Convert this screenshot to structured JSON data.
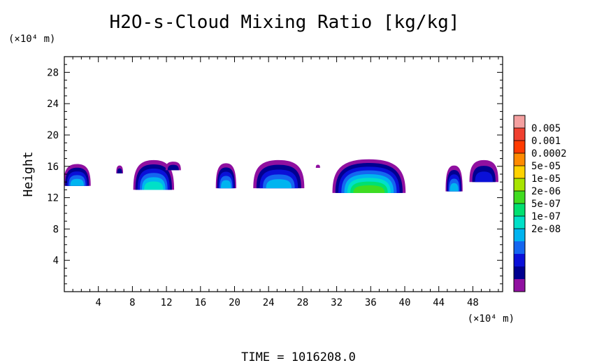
{
  "chart_data": {
    "type": "heatmap",
    "title": "H2O-s-Cloud Mixing Ratio [kg/kg]",
    "ylabel": "Height",
    "x_unit_label": "(×10⁴ m)",
    "y_unit_label": "(×10⁴ m)",
    "xlim": [
      0,
      51.5
    ],
    "ylim": [
      0,
      30.0
    ],
    "x_ticks": [
      4,
      8,
      12,
      16,
      20,
      24,
      28,
      32,
      36,
      40,
      44,
      48
    ],
    "y_ticks": [
      4,
      8,
      12,
      16,
      20,
      24,
      28
    ],
    "footer": "TIME = 1016208.0",
    "colorbar": {
      "labels": [
        "0.005",
        "0.001",
        "0.0002",
        "5e-05",
        "1e-05",
        "2e-06",
        "5e-07",
        "1e-07",
        "2e-08"
      ],
      "colors": [
        "#f4a0a0",
        "#f04030",
        "#ff3a00",
        "#ff8a00",
        "#ffd200",
        "#a8e400",
        "#40dc20",
        "#00e070",
        "#00e0c8",
        "#00b4f0",
        "#1466f0",
        "#0a10d8",
        "#000090",
        "#9010a0"
      ]
    },
    "cloud_regions": [
      {
        "x_center": 1.5,
        "x_width": 3.2,
        "bottom": 13.5,
        "top": 16.3,
        "peak_level": 4
      },
      {
        "x_center": 6.5,
        "x_width": 0.8,
        "bottom": 15.1,
        "top": 16.1,
        "peak_level": 1
      },
      {
        "x_center": 10.5,
        "x_width": 4.8,
        "bottom": 13.0,
        "top": 16.8,
        "peak_level": 5
      },
      {
        "x_center": 12.8,
        "x_width": 1.8,
        "bottom": 15.5,
        "top": 16.6,
        "peak_level": 1
      },
      {
        "x_center": 19.0,
        "x_width": 2.4,
        "bottom": 13.2,
        "top": 16.4,
        "peak_level": 4
      },
      {
        "x_center": 25.2,
        "x_width": 6.0,
        "bottom": 13.2,
        "top": 16.8,
        "peak_level": 4
      },
      {
        "x_center": 29.8,
        "x_width": 0.5,
        "bottom": 15.8,
        "top": 16.2,
        "peak_level": 0
      },
      {
        "x_center": 35.8,
        "x_width": 8.6,
        "bottom": 12.6,
        "top": 16.9,
        "peak_level": 7
      },
      {
        "x_center": 45.8,
        "x_width": 2.0,
        "bottom": 12.8,
        "top": 16.1,
        "peak_level": 4
      },
      {
        "x_center": 49.3,
        "x_width": 3.4,
        "bottom": 14.0,
        "top": 16.8,
        "peak_level": 2
      }
    ]
  }
}
